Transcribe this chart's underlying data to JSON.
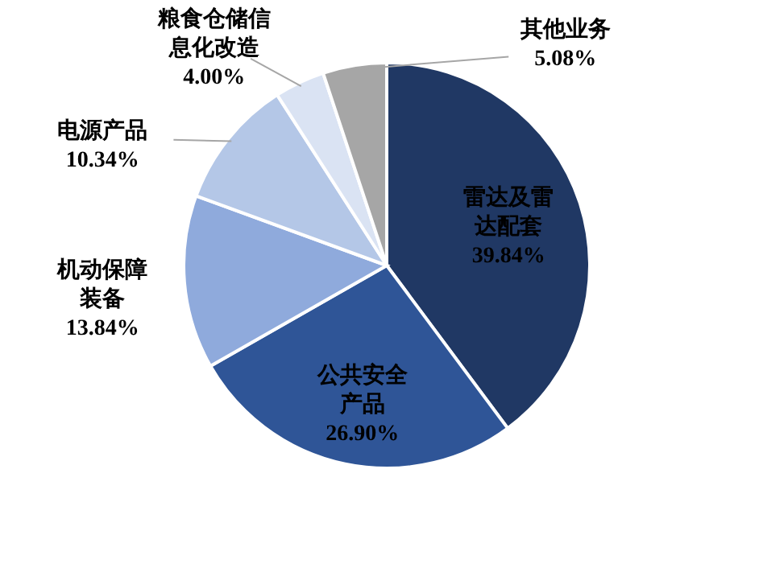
{
  "chart_data": {
    "type": "pie",
    "categories": [
      "雷达及雷达配套",
      "公共安全产品",
      "机动保障装备",
      "电源产品",
      "粮食仓储信息化改造",
      "其他业务"
    ],
    "values": [
      39.84,
      26.9,
      13.84,
      10.34,
      4.0,
      5.08
    ],
    "value_labels": [
      "39.84%",
      "26.90%",
      "13.84%",
      "10.34%",
      "4.00%",
      "5.08%"
    ],
    "colors": [
      "#203864",
      "#2f5597",
      "#8faadc",
      "#b4c7e7",
      "#dae3f3",
      "#a6a6a6"
    ]
  }
}
